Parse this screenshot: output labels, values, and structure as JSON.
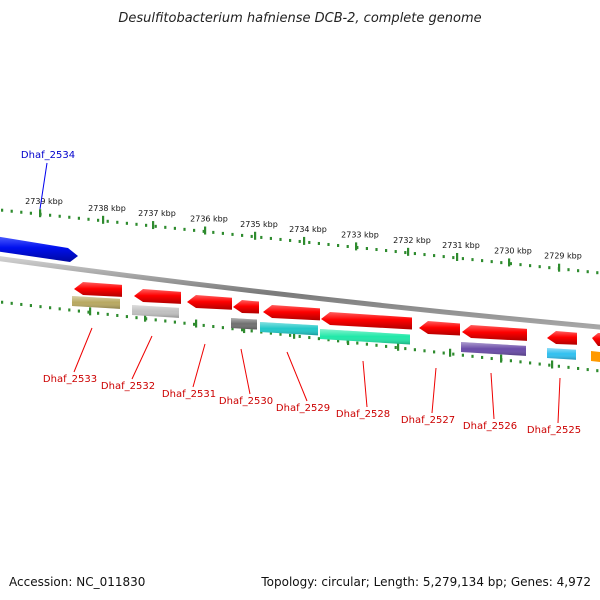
{
  "title": "Desulfitobacterium hafniense DCB-2, complete genome",
  "footer": {
    "accession": "Accession: NC_011830",
    "summary": "Topology: circular; Length: 5,279,134 bp; Genes: 4,972"
  },
  "colors": {
    "strand_plus_label": "#0000cc",
    "strand_minus_label": "#cc0000",
    "backbone": "#8c8c8c",
    "tick": "#2e8b2e"
  },
  "ticks": [
    "2739 kbp",
    "2738 kbp",
    "2737 kbp",
    "2736 kbp",
    "2735 kbp",
    "2734 kbp",
    "2733 kbp",
    "2732 kbp",
    "2731 kbp",
    "2730 kbp",
    "2729 kbp"
  ],
  "genes_forward": [
    {
      "label": "Dhaf_2534",
      "color": "#0000ee"
    }
  ],
  "genes_reverse": [
    {
      "label": "Dhaf_2533",
      "color": "#ee0000"
    },
    {
      "label": "Dhaf_2532",
      "color": "#ee0000"
    },
    {
      "label": "Dhaf_2531",
      "color": "#ee0000"
    },
    {
      "label": "Dhaf_2530",
      "color": "#ee0000"
    },
    {
      "label": "Dhaf_2529",
      "color": "#ee0000"
    },
    {
      "label": "Dhaf_2528",
      "color": "#ee0000"
    },
    {
      "label": "Dhaf_2527",
      "color": "#ee0000"
    },
    {
      "label": "Dhaf_2526",
      "color": "#ee0000"
    },
    {
      "label": "Dhaf_2525",
      "color": "#ee0000"
    }
  ],
  "domain_colors": [
    "#b8a860",
    "#c0c0c0",
    "#707070",
    "#20c8c8",
    "#20e8a8",
    "#20c8c8",
    "#6a4ca8",
    "#30c0f0",
    "#ff9900"
  ]
}
